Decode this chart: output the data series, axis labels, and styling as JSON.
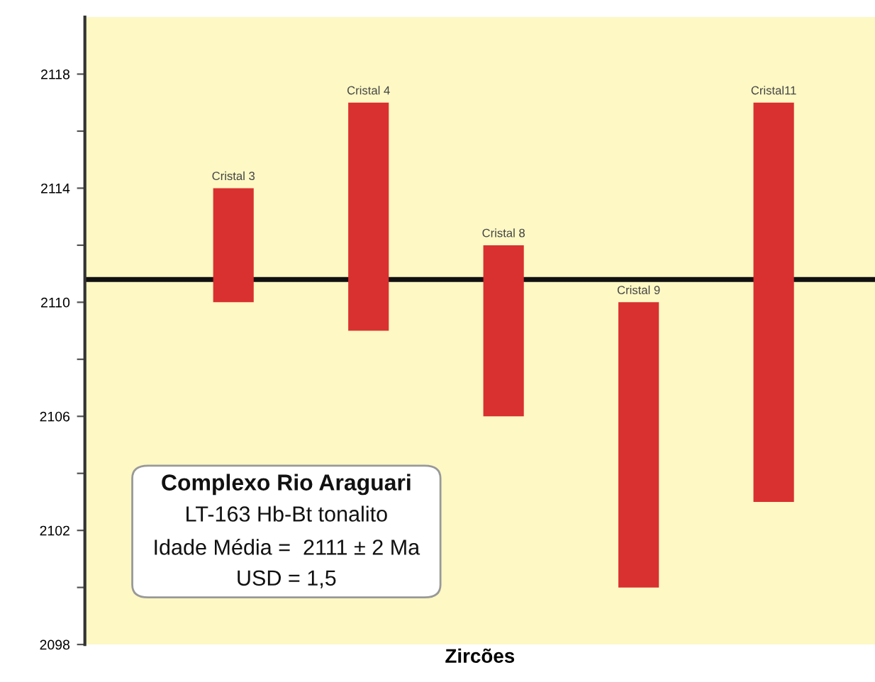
{
  "chart_data": {
    "type": "bar",
    "xlabel": "Zircões",
    "categories": [
      "Cristal 3",
      "Cristal 4",
      "Cristal 8",
      "Cristal 9",
      "Cristal11"
    ],
    "base": [
      2110,
      2109,
      2106,
      2100,
      2103
    ],
    "values": [
      4,
      8,
      6,
      10,
      14
    ],
    "color": "#d93030",
    "ylim": [
      2098,
      2120
    ],
    "yticks": [
      2098,
      {
        "value": 2100,
        "label": null
      },
      2102,
      {
        "value": 2104,
        "label": null
      },
      2106,
      {
        "value": 2108,
        "label": null
      },
      2110,
      {
        "value": 2112,
        "label": null
      },
      2114,
      {
        "value": 2116,
        "label": null
      },
      2118
    ],
    "ref_lines": [
      {
        "axis": "y",
        "value": 2110.8,
        "color": "#111111"
      }
    ],
    "annotations": [
      "Complexo Rio Araguari",
      "LT-163 Hb-Bt tonalito",
      "Idade Média =  2111 ± 2 Ma",
      "USD = 1,5"
    ],
    "grid": false,
    "legend": false
  }
}
